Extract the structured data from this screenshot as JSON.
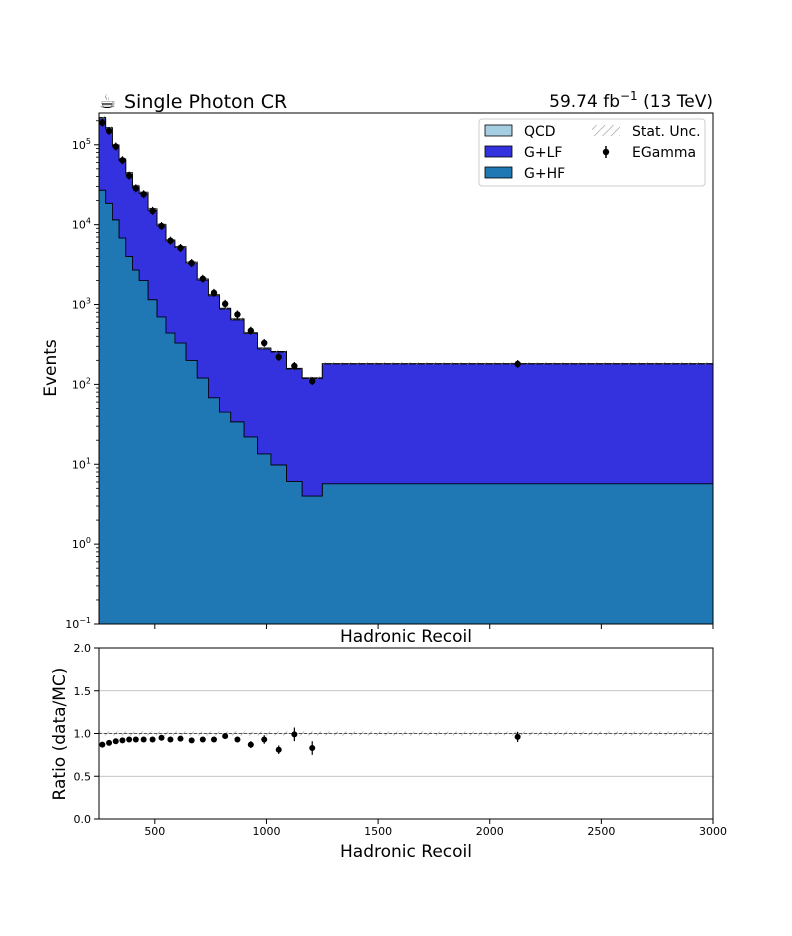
{
  "header": {
    "icon": "coffee-cup-icon",
    "title": "Single Photon CR",
    "lumi_value": "59.74 fb",
    "lumi_exp": "−1",
    "lumi_energy": " (13 TeV)"
  },
  "chart_data": [
    {
      "type": "area",
      "style": "stacked step histogram (log scale)",
      "ylabel": "Events",
      "xlabel": "Hadronic Recoil",
      "xlim": [
        250,
        3000
      ],
      "ylim": [
        0.1,
        250000
      ],
      "yscale": "log",
      "ytick_labels": [
        {
          "value": 100000,
          "base": "10",
          "exp": "5"
        },
        {
          "value": 10000,
          "base": "10",
          "exp": "4"
        },
        {
          "value": 1000,
          "base": "10",
          "exp": "3"
        },
        {
          "value": 100,
          "base": "10",
          "exp": "2"
        },
        {
          "value": 10,
          "base": "10",
          "exp": "1"
        },
        {
          "value": 1,
          "base": "10",
          "exp": "0"
        },
        {
          "value": 0.1,
          "base": "10",
          "exp": "−1"
        }
      ],
      "bin_edges": [
        250,
        280,
        310,
        340,
        370,
        400,
        430,
        470,
        510,
        550,
        590,
        640,
        690,
        740,
        790,
        840,
        900,
        960,
        1020,
        1090,
        1160,
        1250,
        3000
      ],
      "series": [
        {
          "name": "G+HF",
          "color": "#1f77b4",
          "values": [
            27000,
            18500,
            11500,
            6800,
            4000,
            2700,
            2000,
            1150,
            700,
            440,
            330,
            200,
            120,
            68,
            45,
            34,
            22,
            13.5,
            9.8,
            6.1,
            4.0,
            5.7
          ]
        },
        {
          "name": "G+LF",
          "color": "#3431de",
          "values": [
            185000,
            140000,
            84000,
            57000,
            39000,
            26500,
            22500,
            14000,
            9000,
            5800,
            4850,
            3100,
            1900,
            1220,
            830,
            610,
            410,
            265,
            245,
            150,
            115,
            175
          ]
        },
        {
          "name": "QCD",
          "color": "#a6cee3",
          "values": [
            8000,
            6000,
            4000,
            3000,
            2000,
            1500,
            1000,
            700,
            400,
            200,
            150,
            100,
            70,
            40,
            25,
            18,
            12,
            8,
            4,
            3,
            2,
            2
          ]
        }
      ],
      "data_series": {
        "name": "EGamma",
        "color": "#000000",
        "x": [
          265,
          295,
          325,
          355,
          385,
          415,
          450,
          490,
          530,
          570,
          615,
          665,
          715,
          765,
          815,
          870,
          930,
          990,
          1055,
          1125,
          1205,
          2125
        ],
        "y": [
          189000,
          149000,
          95000,
          64000,
          41000,
          28500,
          24000,
          14900,
          9600,
          6300,
          5100,
          3300,
          2100,
          1400,
          1020,
          750,
          470,
          330,
          220,
          170,
          110,
          180
        ]
      },
      "legend": {
        "placement": "upper right",
        "entries": [
          "QCD",
          "G+LF",
          "G+HF",
          "Stat. Unc.",
          "EGamma"
        ]
      }
    },
    {
      "type": "scatter",
      "ylabel": "Ratio (data/MC)",
      "xlabel": "Hadronic Recoil",
      "xlim": [
        250,
        3000
      ],
      "ylim": [
        0.0,
        2.0
      ],
      "grid": true,
      "xtick_labels": [
        "500",
        "1000",
        "1500",
        "2000",
        "2500",
        "3000"
      ],
      "xtick_values": [
        500,
        1000,
        1500,
        2000,
        2500,
        3000
      ],
      "ytick_labels": [
        "0.0",
        "0.5",
        "1.0",
        "1.5",
        "2.0"
      ],
      "ytick_values": [
        0.0,
        0.5,
        1.0,
        1.5,
        2.0
      ],
      "reference_line": 1.0,
      "points": {
        "x": [
          265,
          295,
          325,
          355,
          385,
          415,
          450,
          490,
          530,
          570,
          615,
          665,
          715,
          765,
          815,
          870,
          930,
          990,
          1055,
          1125,
          1205,
          2125
        ],
        "y": [
          0.87,
          0.89,
          0.91,
          0.92,
          0.93,
          0.93,
          0.93,
          0.93,
          0.95,
          0.93,
          0.94,
          0.92,
          0.93,
          0.93,
          0.97,
          0.93,
          0.87,
          0.93,
          0.81,
          0.99,
          0.83,
          0.96
        ],
        "err": [
          0.02,
          0.02,
          0.02,
          0.02,
          0.02,
          0.02,
          0.02,
          0.02,
          0.02,
          0.02,
          0.02,
          0.02,
          0.02,
          0.02,
          0.03,
          0.03,
          0.04,
          0.05,
          0.05,
          0.08,
          0.08,
          0.06
        ]
      }
    }
  ]
}
